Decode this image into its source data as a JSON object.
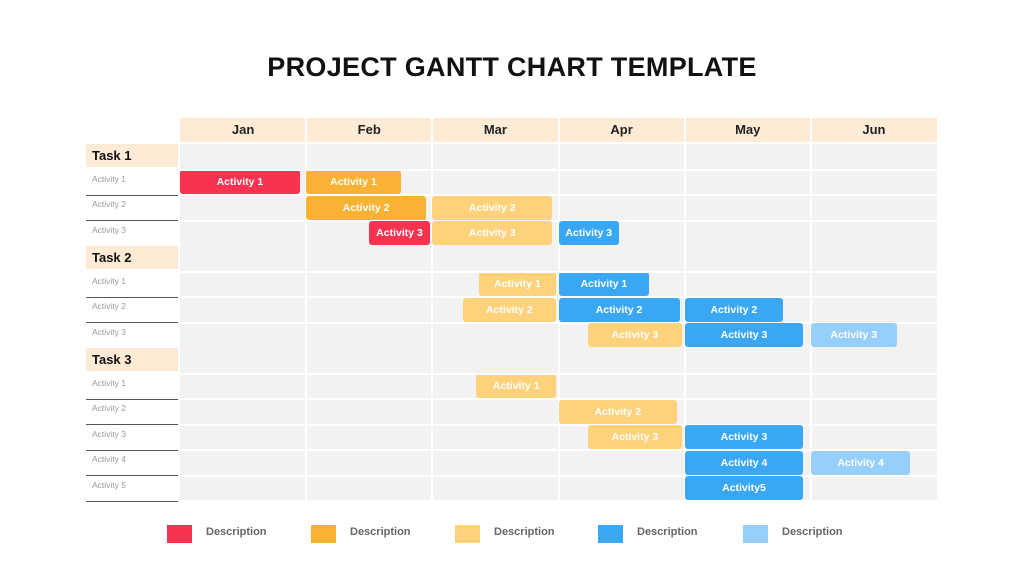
{
  "title": "PROJECT GANTT CHART TEMPLATE",
  "colors": {
    "red": "#f7334f",
    "orange": "#f9b233",
    "light_orange": "#fdd27a",
    "blue": "#3aa7f4",
    "light_blue": "#96d0fa",
    "header_bg": "#fdebd6",
    "grid_bg": "#f2f2f2"
  },
  "legend": [
    {
      "label": "Description",
      "color": "#f7334f"
    },
    {
      "label": "Description",
      "color": "#f9b233"
    },
    {
      "label": "Description",
      "color": "#fdd27a"
    },
    {
      "label": "Description",
      "color": "#3aa7f4"
    },
    {
      "label": "Description",
      "color": "#96d0fa"
    }
  ],
  "chart_data": {
    "type": "gantt",
    "title": "PROJECT GANTT CHART TEMPLATE",
    "months": [
      "Jan",
      "Feb",
      "Mar",
      "Apr",
      "May",
      "Jun"
    ],
    "tasks": [
      {
        "name": "Task 1",
        "activities": [
          {
            "label": "Activity 1",
            "bars": [
              {
                "text": "Activity 1",
                "start": 0.0,
                "end": 0.95,
                "color": "#f7334f"
              },
              {
                "text": "Activity 1",
                "start": 1.0,
                "end": 1.75,
                "color": "#f9b233"
              }
            ]
          },
          {
            "label": "Activity 2",
            "bars": [
              {
                "text": "Activity 2",
                "start": 1.0,
                "end": 1.95,
                "color": "#f9b233"
              },
              {
                "text": "Activity 2",
                "start": 2.0,
                "end": 2.95,
                "color": "#fdd27a"
              }
            ]
          },
          {
            "label": "Activity 3",
            "bars": [
              {
                "text": "Activity 3",
                "start": 1.5,
                "end": 1.98,
                "color": "#f7334f"
              },
              {
                "text": "Activity 3",
                "start": 2.0,
                "end": 2.95,
                "color": "#fdd27a"
              },
              {
                "text": "Activity 3",
                "start": 3.0,
                "end": 3.48,
                "color": "#3aa7f4"
              }
            ]
          }
        ]
      },
      {
        "name": "Task 2",
        "activities": [
          {
            "label": "Activity 1",
            "bars": [
              {
                "text": "Activity 1",
                "start": 2.37,
                "end": 2.98,
                "color": "#fdd27a"
              },
              {
                "text": "Activity 1",
                "start": 3.0,
                "end": 3.72,
                "color": "#3aa7f4"
              }
            ]
          },
          {
            "label": "Activity 2",
            "bars": [
              {
                "text": "Activity 2",
                "start": 2.24,
                "end": 2.98,
                "color": "#fdd27a"
              },
              {
                "text": "Activity 2",
                "start": 3.0,
                "end": 3.96,
                "color": "#3aa7f4"
              },
              {
                "text": "Activity 2",
                "start": 4.0,
                "end": 4.78,
                "color": "#3aa7f4"
              }
            ]
          },
          {
            "label": "Activity 3",
            "bars": [
              {
                "text": "Activity 3",
                "start": 3.23,
                "end": 3.98,
                "color": "#fdd27a"
              },
              {
                "text": "Activity 3",
                "start": 4.0,
                "end": 4.94,
                "color": "#3aa7f4"
              },
              {
                "text": "Activity 3",
                "start": 5.0,
                "end": 5.68,
                "color": "#96d0fa"
              }
            ]
          }
        ]
      },
      {
        "name": "Task 3",
        "activities": [
          {
            "label": "Activity 1",
            "bars": [
              {
                "text": "Activity 1",
                "start": 2.35,
                "end": 2.98,
                "color": "#fdd27a"
              }
            ]
          },
          {
            "label": "Activity 2",
            "bars": [
              {
                "text": "Activity 2",
                "start": 3.0,
                "end": 3.94,
                "color": "#fdd27a"
              }
            ]
          },
          {
            "label": "Activity 3",
            "bars": [
              {
                "text": "Activity 3",
                "start": 3.23,
                "end": 3.98,
                "color": "#fdd27a"
              },
              {
                "text": "Activity 3",
                "start": 4.0,
                "end": 4.94,
                "color": "#3aa7f4"
              }
            ]
          },
          {
            "label": "Activity 4",
            "bars": [
              {
                "text": "Activity 4",
                "start": 4.0,
                "end": 4.94,
                "color": "#3aa7f4"
              },
              {
                "text": "Activity 4",
                "start": 5.0,
                "end": 5.79,
                "color": "#96d0fa"
              }
            ]
          },
          {
            "label": "Activity 5",
            "bars": [
              {
                "text": "Activity5",
                "start": 4.0,
                "end": 4.94,
                "color": "#3aa7f4"
              }
            ]
          }
        ]
      }
    ]
  }
}
